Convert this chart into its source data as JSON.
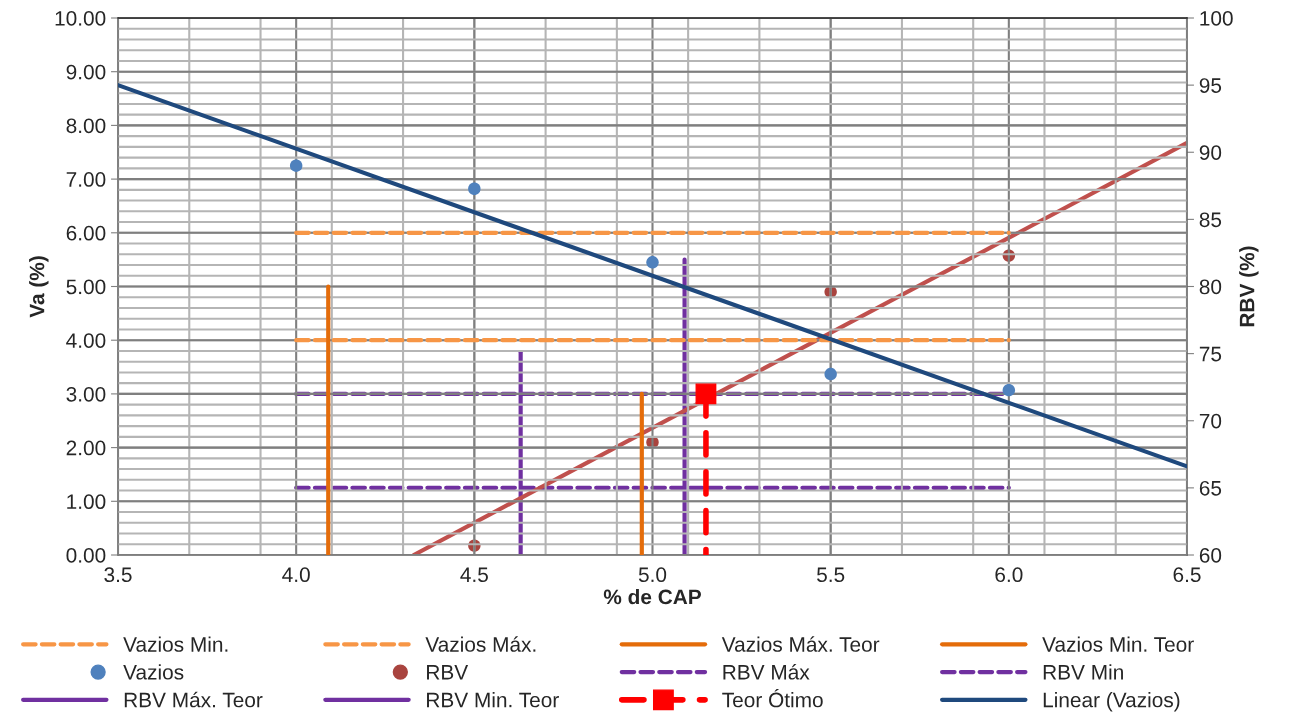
{
  "chart_data": {
    "type": "scatter",
    "xlabel": "% de CAP",
    "ylabel": "Va (%)",
    "y2label": "RBV (%)",
    "xlim": [
      3.5,
      6.5
    ],
    "xticks": [
      3.5,
      {
        "value": 4,
        "label": "4.0"
      },
      4.5,
      {
        "value": 5,
        "label": "5.0"
      },
      5.5,
      {
        "value": 6,
        "label": "6.0"
      },
      6.5
    ],
    "ylim": [
      0,
      10
    ],
    "yticks": [
      {
        "value": 0,
        "label": "0.00"
      },
      {
        "value": 1,
        "label": "1.00"
      },
      {
        "value": 2,
        "label": "2.00"
      },
      {
        "value": 3,
        "label": "3.00"
      },
      {
        "value": 4,
        "label": "4.00"
      },
      {
        "value": 5,
        "label": "5.00"
      },
      {
        "value": 6,
        "label": "6.00"
      },
      {
        "value": 7,
        "label": "7.00"
      },
      {
        "value": 8,
        "label": "8.00"
      },
      {
        "value": 9,
        "label": "9.00"
      },
      {
        "value": 10,
        "label": "10.00"
      }
    ],
    "y2lim": [
      60,
      100
    ],
    "y2ticks": [
      60,
      65,
      70,
      75,
      80,
      85,
      90,
      95,
      100
    ],
    "grid": true,
    "legend": "bottom",
    "series": [
      {
        "name": "Vazios Min.",
        "type": "line",
        "color": "#f79646",
        "line_style": "dashed",
        "marker": "none",
        "x": [
          4.0,
          6.0
        ],
        "values": [
          4.0,
          4.0
        ]
      },
      {
        "name": "Vazios Máx.",
        "type": "line",
        "color": "#f79646",
        "line_style": "dashed",
        "marker": "none",
        "x": [
          4.0,
          6.0
        ],
        "values": [
          6.0,
          6.0
        ]
      },
      {
        "name": "Vazios Máx. Teor",
        "type": "line",
        "color": "#e46c0a",
        "line_style": "solid",
        "marker": "none",
        "x": [
          4.09,
          4.09
        ],
        "values": [
          0,
          5.0
        ]
      },
      {
        "name": "Vazios Min. Teor",
        "type": "line",
        "color": "#e46c0a",
        "line_style": "solid",
        "marker": "none",
        "x": [
          4.97,
          4.97
        ],
        "values": [
          0,
          3.0
        ]
      },
      {
        "name": "Vazios",
        "color": "#4f81bd",
        "marker": "circle",
        "x": [
          4.0,
          4.5,
          5.0,
          5.5,
          6.0
        ],
        "values": [
          7.25,
          6.82,
          5.45,
          3.37,
          3.07
        ]
      },
      {
        "name": "RBV",
        "color": "#a9443f",
        "marker": "circle",
        "axis": "y2",
        "x": [
          4.5,
          5.0,
          5.5,
          6.0
        ],
        "values": [
          60.7,
          68.4,
          79.6,
          82.3
        ]
      },
      {
        "name": "RBV Máx",
        "type": "line",
        "color": "#7030a0",
        "line_style": "dashed",
        "marker": "none",
        "axis": "y2",
        "x": [
          4.0,
          6.0
        ],
        "values": [
          72,
          72
        ]
      },
      {
        "name": "RBV Min",
        "type": "line",
        "color": "#7030a0",
        "line_style": "dashed",
        "marker": "none",
        "axis": "y2",
        "x": [
          4.0,
          6.0
        ],
        "values": [
          65,
          65
        ]
      },
      {
        "name": "RBV Máx. Teor",
        "type": "line",
        "color": "#7030a0",
        "line_style": "solid",
        "marker": "none",
        "axis": "y2",
        "x": [
          4.63,
          4.63
        ],
        "values": [
          60,
          75.1
        ]
      },
      {
        "name": "RBV Min. Teor",
        "type": "line",
        "color": "#7030a0",
        "line_style": "solid",
        "marker": "none",
        "axis": "y2",
        "x": [
          5.09,
          5.09
        ],
        "values": [
          60,
          82.0
        ]
      },
      {
        "name": "Teor Ótimo",
        "type": "line",
        "color": "#ff0000",
        "line_style": "dashed",
        "marker": "square",
        "x": [
          5.15,
          5.15
        ],
        "values": [
          3.0,
          0
        ]
      },
      {
        "name": "Linear (Vazios)",
        "type": "line",
        "color": "#1f497d",
        "line_style": "solid",
        "marker": "none",
        "x": [
          3.5,
          6.5
        ],
        "values": [
          8.75,
          1.65
        ]
      },
      {
        "type": "line",
        "color": "#c0504d",
        "line_style": "solid",
        "marker": "none",
        "axis": "y2",
        "x": [
          4.33,
          6.5
        ],
        "values": [
          60,
          90.7
        ]
      }
    ]
  }
}
